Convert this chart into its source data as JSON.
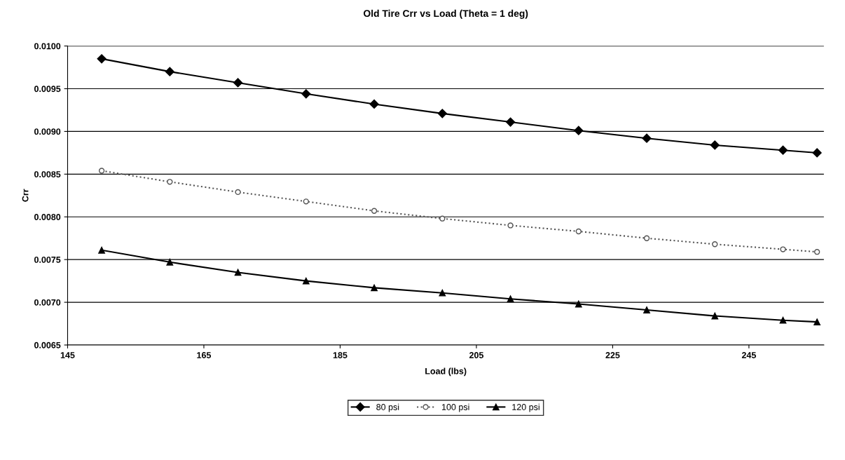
{
  "chart_data": {
    "type": "line",
    "title": "Old Tire Crr vs Load (Theta = 1 deg)",
    "xlabel": "Load (lbs)",
    "ylabel": "Crr",
    "x": [
      150,
      160,
      170,
      180,
      190,
      200,
      210,
      220,
      230,
      240,
      250,
      255
    ],
    "series": [
      {
        "name": "80 psi",
        "color": "#000000",
        "marker": "diamond",
        "line_style": "solid",
        "values": [
          0.00985,
          0.0097,
          0.00957,
          0.00944,
          0.00932,
          0.00921,
          0.00911,
          0.00901,
          0.00892,
          0.00884,
          0.00878,
          0.00875
        ]
      },
      {
        "name": "100 psi",
        "color": "#555555",
        "marker": "circle",
        "line_style": "dotted",
        "values": [
          0.00854,
          0.00841,
          0.00829,
          0.00818,
          0.00807,
          0.00798,
          0.0079,
          0.00783,
          0.00775,
          0.00768,
          0.00762,
          0.00759
        ]
      },
      {
        "name": "120 psi",
        "color": "#000000",
        "marker": "triangle",
        "line_style": "solid",
        "values": [
          0.00761,
          0.00747,
          0.00735,
          0.00725,
          0.00717,
          0.00711,
          0.00704,
          0.00698,
          0.00691,
          0.00684,
          0.00679,
          0.00677
        ]
      }
    ],
    "xlim": [
      145,
      256
    ],
    "xticks": [
      145,
      165,
      185,
      205,
      225,
      245
    ],
    "ylim": [
      0.0065,
      0.01
    ],
    "yticks": [
      {
        "value": 0.0065,
        "label": "0.0065"
      },
      {
        "value": 0.007,
        "label": "0.0070"
      },
      {
        "value": 0.0075,
        "label": "0.0075"
      },
      {
        "value": 0.008,
        "label": "0.0080"
      },
      {
        "value": 0.0085,
        "label": "0.0085"
      },
      {
        "value": 0.009,
        "label": "0.0090"
      },
      {
        "value": 0.0095,
        "label": "0.0095"
      },
      {
        "value": 0.01,
        "label": "0.0100"
      }
    ],
    "grid": "y",
    "legend": "bottom"
  }
}
